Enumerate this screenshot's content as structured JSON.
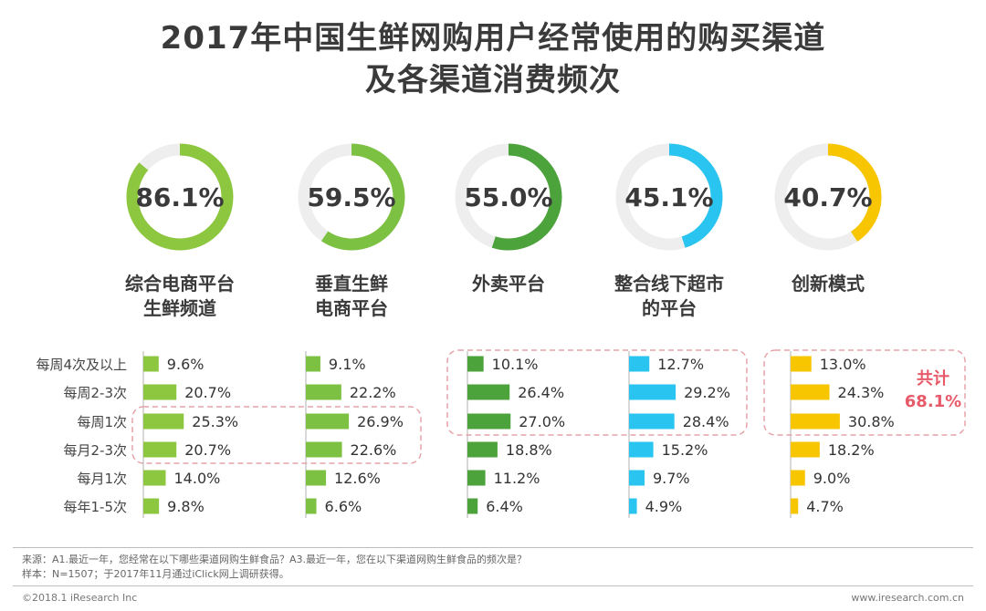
{
  "title": {
    "line1": "2017年中国生鲜网购用户经常使用的购买渠道",
    "line2": "及各渠道消费频次"
  },
  "colors": {
    "channels": [
      "#8dc63f",
      "#7cc142",
      "#4ca33b",
      "#29c4ef",
      "#f7c600"
    ],
    "track": "#eeeeee",
    "highlight_border": "#e6a3a8",
    "annotation": "#e85a6a"
  },
  "chart_data": {
    "type": "bar",
    "channels": [
      "综合电商平台\n生鲜频道",
      "垂直生鲜\n电商平台",
      "外卖平台",
      "整合线下超市\n的平台",
      "创新模式"
    ],
    "usage_rate_labels": [
      "86.1%",
      "59.5%",
      "55.0%",
      "45.1%",
      "40.7%"
    ],
    "usage_rate": [
      86.1,
      59.5,
      55.0,
      45.1,
      40.7
    ],
    "frequency_categories": [
      "每周4次及以上",
      "每周2-3次",
      "每周1次",
      "每月2-3次",
      "每月1次",
      "每年1-5次"
    ],
    "series": [
      {
        "name": "综合电商平台生鲜频道",
        "values": [
          9.6,
          20.7,
          25.3,
          20.7,
          14.0,
          9.8
        ],
        "labels": [
          "9.6%",
          "20.7%",
          "25.3%",
          "20.7%",
          "14.0%",
          "9.8%"
        ]
      },
      {
        "name": "垂直生鲜电商平台",
        "values": [
          9.1,
          22.2,
          26.9,
          22.6,
          12.6,
          6.6
        ],
        "labels": [
          "9.1%",
          "22.2%",
          "26.9%",
          "22.6%",
          "12.6%",
          "6.6%"
        ]
      },
      {
        "name": "外卖平台",
        "values": [
          10.1,
          26.4,
          27.0,
          18.8,
          11.2,
          6.4
        ],
        "labels": [
          "10.1%",
          "26.4%",
          "27.0%",
          "18.8%",
          "11.2%",
          "6.4%"
        ]
      },
      {
        "name": "整合线下超市的平台",
        "values": [
          12.7,
          29.2,
          28.4,
          15.2,
          9.7,
          4.9
        ],
        "labels": [
          "12.7%",
          "29.2%",
          "28.4%",
          "15.2%",
          "9.7%",
          "4.9%"
        ]
      },
      {
        "name": "创新模式",
        "values": [
          13.0,
          24.3,
          30.8,
          18.2,
          9.0,
          4.7
        ],
        "labels": [
          "13.0%",
          "24.3%",
          "30.8%",
          "18.2%",
          "9.0%",
          "4.7%"
        ]
      }
    ],
    "annotation": {
      "line1": "共计",
      "line2": "68.1%"
    }
  },
  "notes": {
    "source": "来源：A1.最近一年，您经常在以下哪些渠道网购生鲜食品？A3.最近一年，您在以下渠道网购生鲜食品的频次是？",
    "sample": "样本：N=1507；于2017年11月通过iClick网上调研获得。"
  },
  "footer": {
    "copyright": "©2018.1 iResearch Inc",
    "website": "www.iresearch.com.cn"
  }
}
